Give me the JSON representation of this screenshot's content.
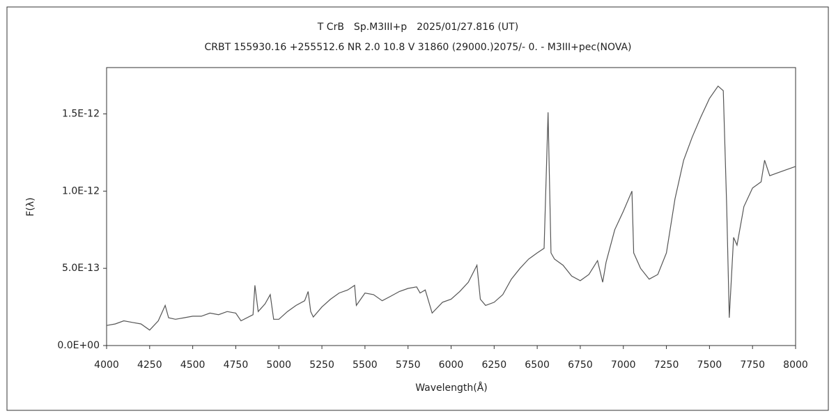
{
  "chart_data": {
    "type": "line",
    "title": "T CrB　Sp.M3III+p　2025/01/27.816 (UT)",
    "subtitle": "CRBT 155930.16 +255512.6 NR 2.0 10.8 V 31860 (29000.)2075/-  0. - M3III+pec(NOVA)",
    "x_label": "Wavelength(Å)",
    "y_label": "F(λ)",
    "xlim": [
      4000,
      8000
    ],
    "xticks": [
      4000,
      4250,
      4500,
      4750,
      5000,
      5250,
      5500,
      5750,
      6000,
      6250,
      6500,
      6750,
      7000,
      7250,
      7500,
      7750,
      8000
    ],
    "ylim": [
      0,
      1.8e-12
    ],
    "yticks": [
      {
        "value": 0,
        "label": "0.0E+00"
      },
      {
        "value": 5e-13,
        "label": "5.0E-13"
      },
      {
        "value": 1e-12,
        "label": "1.0E-12"
      },
      {
        "value": 1.5e-12,
        "label": "1.5E-12"
      }
    ],
    "x": [
      4000,
      4050,
      4100,
      4150,
      4200,
      4250,
      4300,
      4340,
      4360,
      4400,
      4450,
      4500,
      4550,
      4600,
      4650,
      4700,
      4750,
      4780,
      4850,
      4861,
      4880,
      4920,
      4950,
      4970,
      5000,
      5050,
      5100,
      5150,
      5170,
      5185,
      5200,
      5250,
      5300,
      5350,
      5400,
      5440,
      5450,
      5500,
      5550,
      5600,
      5650,
      5700,
      5750,
      5800,
      5820,
      5850,
      5890,
      5950,
      6000,
      6050,
      6100,
      6150,
      6170,
      6200,
      6250,
      6300,
      6350,
      6400,
      6450,
      6500,
      6540,
      6563,
      6580,
      6600,
      6650,
      6700,
      6750,
      6800,
      6850,
      6880,
      6900,
      6950,
      7000,
      7050,
      7060,
      7100,
      7150,
      7200,
      7250,
      7300,
      7350,
      7400,
      7450,
      7500,
      7550,
      7580,
      7600,
      7615,
      7640,
      7660,
      7700,
      7750,
      7800,
      7820,
      7850,
      7900,
      7950,
      8000
    ],
    "series": [
      {
        "name": "T CrB",
        "color": "#555555",
        "values": [
          1.3e-13,
          1.4e-13,
          1.6e-13,
          1.5e-13,
          1.4e-13,
          1e-13,
          1.6e-13,
          2.6e-13,
          1.8e-13,
          1.7e-13,
          1.8e-13,
          1.9e-13,
          1.9e-13,
          2.1e-13,
          2e-13,
          2.2e-13,
          2.1e-13,
          1.6e-13,
          2e-13,
          3.9e-13,
          2.2e-13,
          2.7e-13,
          3.3e-13,
          1.7e-13,
          1.7e-13,
          2.2e-13,
          2.6e-13,
          2.9e-13,
          3.5e-13,
          2.2e-13,
          1.85e-13,
          2.5e-13,
          3e-13,
          3.4e-13,
          3.6e-13,
          3.9e-13,
          2.6e-13,
          3.4e-13,
          3.3e-13,
          2.9e-13,
          3.2e-13,
          3.5e-13,
          3.7e-13,
          3.8e-13,
          3.4e-13,
          3.6e-13,
          2.1e-13,
          2.8e-13,
          3e-13,
          3.5e-13,
          4.1e-13,
          5.2e-13,
          3e-13,
          2.6e-13,
          2.8e-13,
          3.3e-13,
          4.3e-13,
          5e-13,
          5.6e-13,
          6e-13,
          6.3e-13,
          1.51e-12,
          6e-13,
          5.6e-13,
          5.2e-13,
          4.5e-13,
          4.2e-13,
          4.6e-13,
          5.5e-13,
          4.1e-13,
          5.4e-13,
          7.5e-13,
          8.7e-13,
          1e-12,
          6e-13,
          5e-13,
          4.3e-13,
          4.6e-13,
          6e-13,
          9.5e-13,
          1.2e-12,
          1.35e-12,
          1.48e-12,
          1.6e-12,
          1.68e-12,
          1.65e-12,
          9e-13,
          1.8e-13,
          7e-13,
          6.5e-13,
          9e-13,
          1.02e-12,
          1.06e-12,
          1.2e-12,
          1.1e-12,
          1.12e-12,
          1.14e-12,
          1.16e-12
        ]
      }
    ]
  }
}
